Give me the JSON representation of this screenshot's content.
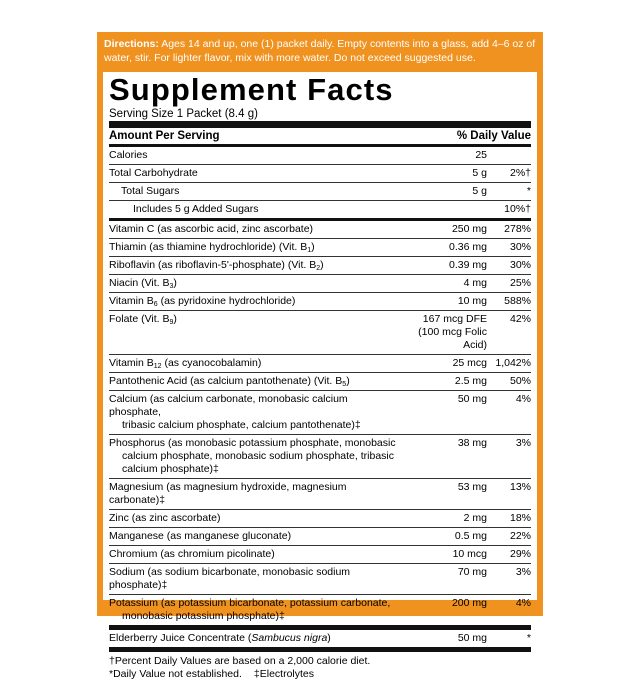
{
  "directions": {
    "label": "Directions:",
    "text": "Ages 14 and up, one (1) packet daily. Empty contents into a glass, add 4–6 oz of water, stir. For lighter flavor, mix with more water. Do not exceed suggested use."
  },
  "title": "Supplement Facts",
  "serving_size": "Serving Size 1 Packet (8.4 g)",
  "header": {
    "amount": "Amount Per Serving",
    "dv": "% Daily Value"
  },
  "rows": [
    {
      "name": [
        "Calories"
      ],
      "amount": "25"
    },
    {
      "name": [
        "Total Carbohydrate"
      ],
      "amount": "5 g",
      "dv": "2%†"
    },
    {
      "name": [
        "Total Sugars"
      ],
      "amount": "5 g",
      "dv": "*"
    },
    {
      "name": [
        "Includes 5 g Added Sugars"
      ],
      "dv": "10%†"
    },
    {
      "name": [
        "Vitamin C (as ascorbic acid, zinc ascorbate)"
      ],
      "amount": "250 mg",
      "dv": "278%"
    },
    {
      "name": [
        {
          "text": "Thiamin (as thiamine hydrochloride) (Vit. B",
          "sub": "1",
          "after": ")"
        }
      ],
      "amount": "0.36 mg",
      "dv": "30%"
    },
    {
      "name": [
        {
          "text": "Riboflavin (as riboflavin-5'-phosphate) (Vit. B",
          "sub": "2",
          "after": ")"
        }
      ],
      "amount": "0.39 mg",
      "dv": "30%"
    },
    {
      "name": [
        {
          "text": "Niacin (Vit. B",
          "sub": "3",
          "after": ")"
        }
      ],
      "amount": "4 mg",
      "dv": "25%"
    },
    {
      "name": [
        {
          "text": "Vitamin B",
          "sub": "6",
          "after": " (as pyridoxine hydrochloride)"
        }
      ],
      "amount": "10 mg",
      "dv": "588%"
    },
    {
      "name": [
        {
          "text": "Folate (Vit. B",
          "sub": "9",
          "after": ")"
        }
      ],
      "amount": [
        "167 mcg DFE",
        "(100 mcg Folic Acid)"
      ],
      "dv": "42%"
    },
    {
      "name": [
        {
          "text": "Vitamin B",
          "sub": "12",
          "after": " (as cyanocobalamin)"
        }
      ],
      "amount": "25 mcg",
      "dv": "1,042%"
    },
    {
      "name": [
        {
          "text": "Pantothenic Acid (as calcium pantothenate) (Vit. B",
          "sub": "5",
          "after": ")"
        }
      ],
      "amount": "2.5 mg",
      "dv": "50%"
    },
    {
      "name": [
        "Calcium (as calcium carbonate, monobasic calcium phosphate,",
        "tribasic calcium phosphate, calcium pantothenate)‡"
      ],
      "amount": "50 mg",
      "dv": "4%"
    },
    {
      "name": [
        "Phosphorus (as monobasic potassium phosphate, monobasic",
        "calcium phosphate, monobasic sodium phosphate, tribasic",
        "calcium phosphate)‡"
      ],
      "amount": "38 mg",
      "dv": "3%"
    },
    {
      "name": [
        "Magnesium (as magnesium hydroxide, magnesium carbonate)‡"
      ],
      "amount": "53 mg",
      "dv": "13%"
    },
    {
      "name": [
        "Zinc (as zinc ascorbate)"
      ],
      "amount": "2 mg",
      "dv": "18%"
    },
    {
      "name": [
        "Manganese (as manganese gluconate)"
      ],
      "amount": "0.5 mg",
      "dv": "22%"
    },
    {
      "name": [
        "Chromium (as chromium picolinate)"
      ],
      "amount": "10 mcg",
      "dv": "29%"
    },
    {
      "name": [
        "Sodium (as sodium bicarbonate, monobasic sodium phosphate)‡"
      ],
      "amount": "70 mg",
      "dv": "3%"
    },
    {
      "name": [
        "Potassium (as potassium bicarbonate, potassium carbonate,",
        "monobasic potassium phosphate)‡"
      ],
      "amount": "200 mg",
      "dv": "4%"
    },
    {
      "name": [
        {
          "text": "Elderberry Juice Concentrate (",
          "italic": "Sambucus nigra",
          "after": ")"
        }
      ],
      "amount": "50 mg",
      "dv": "*"
    }
  ],
  "footnotes": [
    "†Percent Daily Values are based on a 2,000 calorie diet.",
    "*Daily Value not established.",
    "‡Electrolytes"
  ]
}
